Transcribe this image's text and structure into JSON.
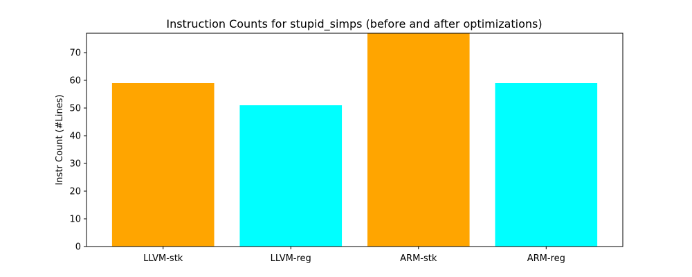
{
  "chart_data": {
    "type": "bar",
    "title": "Instruction Counts for stupid_simps (before and after optimizations)",
    "xlabel": "",
    "ylabel": "Instr Count (#Lines)",
    "categories": [
      "LLVM-stk",
      "LLVM-reg",
      "ARM-stk",
      "ARM-reg"
    ],
    "values": [
      59,
      51,
      77,
      59
    ],
    "bar_colors": [
      "#ffa500",
      "#00ffff",
      "#ffa500",
      "#00ffff"
    ],
    "ylim": [
      0,
      77
    ],
    "yticks": [
      0,
      10,
      20,
      30,
      40,
      50,
      60,
      70
    ],
    "grid": false,
    "legend": "none"
  }
}
